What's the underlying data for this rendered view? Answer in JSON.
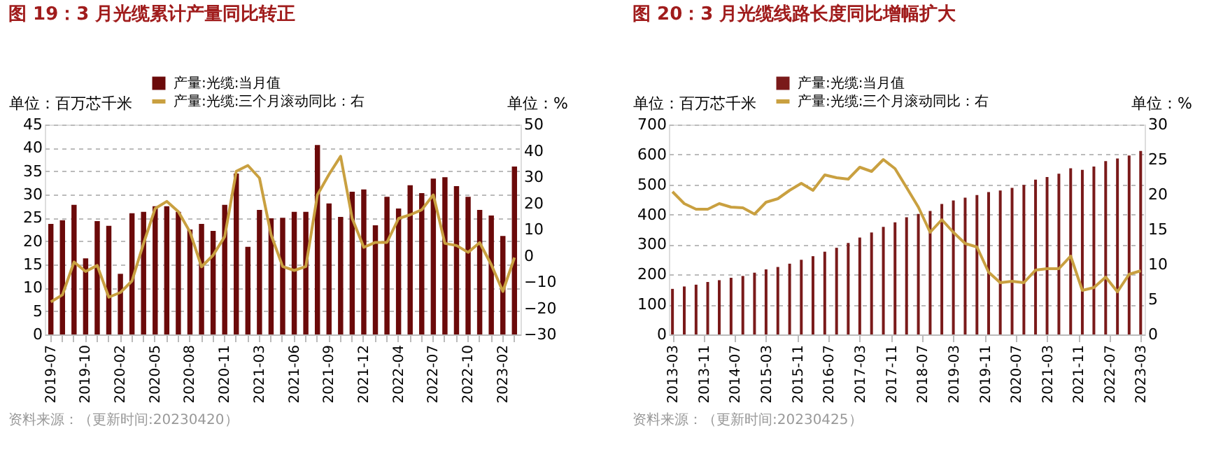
{
  "chart_data": [
    {
      "type": "bar",
      "title": "图 19：3 月光缆累计产量同比转正",
      "ylabel": "单位：百万芯千米",
      "y2label": "单位：%",
      "categories": [
        "2019-07",
        null,
        null,
        "2019-10",
        null,
        null,
        "2020-02",
        null,
        null,
        "2020-05",
        null,
        null,
        "2020-08",
        null,
        null,
        "2020-11",
        null,
        null,
        "2021-03",
        null,
        null,
        "2021-06",
        null,
        null,
        "2021-09",
        null,
        null,
        "2021-12",
        null,
        null,
        "2022-04",
        null,
        null,
        "2022-07",
        null,
        null,
        "2022-10",
        null,
        null,
        "2023-02",
        null
      ],
      "series": [
        {
          "name": "产量:光缆:当月值",
          "color": "#6b0a0a",
          "values": [
            23.7,
            24.5,
            27.8,
            16.3,
            24.3,
            23.3,
            13,
            26,
            26.3,
            27.5,
            27.5,
            26.3,
            22.5,
            23.7,
            22.2,
            27.8,
            34.5,
            18.8,
            26.7,
            24.9,
            25,
            26.3,
            26.3,
            40.6,
            28.1,
            25.2,
            30.6,
            31.1,
            23.4,
            29.5,
            27,
            32,
            30.3,
            33.4,
            33.7,
            31.8,
            29.5,
            26.7,
            25.5,
            21.1,
            36
          ]
        },
        {
          "name": "产量:光缆:三个月滚动同比：右",
          "type": "line",
          "axis": "y2",
          "color": "#c9a040",
          "values": [
            -17.6,
            -14.9,
            -2.4,
            -6,
            -3.7,
            -15.8,
            -14,
            -9.6,
            4.7,
            18,
            20.7,
            16.8,
            9.1,
            -4.2,
            0.2,
            7.3,
            32.2,
            34.4,
            29.6,
            8,
            -4.1,
            -5.6,
            -4.1,
            23.2,
            31,
            37.9,
            14.2,
            3.2,
            5.1,
            5.1,
            14.2,
            15.6,
            17.5,
            23.2,
            4.7,
            3.9,
            1.3,
            5,
            -3.4,
            -13.6,
            -0.7
          ]
        }
      ],
      "ylim": [
        0,
        45
      ],
      "yticks": [
        0,
        5,
        10,
        15,
        20,
        25,
        30,
        35,
        40,
        45
      ],
      "y2lim": [
        -30,
        50
      ],
      "y2ticks": [
        -30,
        -20,
        -10,
        0,
        10,
        20,
        30,
        40,
        50
      ],
      "grid": "y",
      "legend": "top",
      "annotations": [
        "资料来源：（更新时间:20230420）"
      ]
    },
    {
      "type": "bar",
      "title": "图 20：3 月光缆线路长度同比增幅扩大",
      "ylabel": "单位：百万芯千米",
      "y2label": "单位：%",
      "x": [
        "2013-03",
        "2013-06",
        "2013-09",
        "2013-12",
        "2014-03",
        "2014-06",
        "2014-09",
        "2014-12",
        "2015-03",
        "2015-06",
        "2015-09",
        "2015-12",
        "2016-03",
        "2016-06",
        "2016-09",
        "2016-12",
        "2017-03",
        "2017-06",
        "2017-09",
        "2017-12",
        "2018-03",
        "2018-06",
        "2018-09",
        "2018-12",
        "2019-03",
        "2019-06",
        "2019-09",
        "2019-12",
        "2020-03",
        "2020-06",
        "2020-09",
        "2020-12",
        "2021-03",
        "2021-06",
        "2021-09",
        "2021-12",
        "2022-03",
        "2022-06",
        "2022-09",
        "2022-12",
        "2023-03"
      ],
      "series": [
        {
          "name": "产量:光缆:当月值",
          "color": "#7a1a1a",
          "values": [
            152,
            160,
            166,
            175,
            181,
            189,
            195,
            206,
            217,
            225,
            236,
            249,
            261,
            276,
            289,
            305,
            323,
            340,
            359,
            374,
            391,
            402,
            412,
            435,
            447,
            456,
            465,
            475,
            480,
            489,
            499,
            516,
            525,
            536,
            554,
            549,
            560,
            578,
            587,
            597,
            612
          ]
        },
        {
          "name": "产量:光缆:三个月滚动同比：右",
          "type": "line",
          "axis": "y2",
          "color": "#c9a040",
          "values": [
            20.4,
            18.7,
            17.9,
            17.9,
            18.7,
            18.2,
            18.1,
            17.2,
            18.9,
            19.4,
            20.6,
            21.6,
            20.6,
            22.8,
            22.4,
            22.2,
            23.9,
            23.3,
            25,
            23.7,
            21,
            18.2,
            14.6,
            16.4,
            14.6,
            13,
            12.5,
            8.9,
            7.4,
            7.6,
            7.4,
            9.2,
            9.4,
            9.4,
            11.2,
            6.3,
            6.7,
            8.2,
            6.1,
            8.6,
            9.1
          ]
        }
      ],
      "xlim": [
        "2013-02",
        "2023-04"
      ],
      "xticks": [
        "2013-03",
        "2013-11",
        "2014-07",
        "2015-03",
        "2015-11",
        "2016-07",
        "2017-03",
        "2017-11",
        "2018-07",
        "2019-03",
        "2019-11",
        "2020-07",
        "2021-03",
        "2021-11",
        "2022-07",
        "2023-03"
      ],
      "ylim": [
        0,
        700
      ],
      "yticks": [
        0,
        100,
        200,
        300,
        400,
        500,
        600,
        700
      ],
      "y2lim": [
        0,
        30
      ],
      "y2ticks": [
        0,
        5,
        10,
        15,
        20,
        25,
        30
      ],
      "grid": "y",
      "legend": "top",
      "annotations": [
        "资料来源：（更新时间:20230425）"
      ]
    }
  ]
}
